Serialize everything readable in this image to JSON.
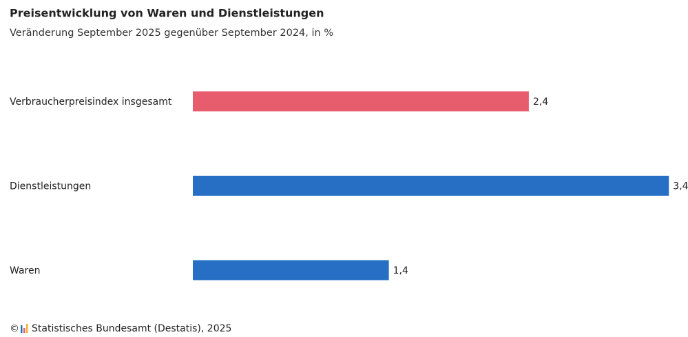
{
  "chart_data": {
    "type": "bar",
    "orientation": "horizontal",
    "title": "Preisentwicklung von Waren und Dienstleistungen",
    "subtitle": "Veränderung September 2025 gegenüber September 2024, in %",
    "categories": [
      "Verbraucherpreisindex insgesamt",
      "Dienstleistungen",
      "Waren"
    ],
    "values": [
      2.4,
      3.4,
      1.4
    ],
    "value_labels": [
      "2,4",
      "3,4",
      "1,4"
    ],
    "colors": [
      "#e85d6e",
      "#266fc4",
      "#266fc4"
    ],
    "copyright": "©",
    "source": "Statistisches Bundesamt (Destatis), 2025"
  }
}
